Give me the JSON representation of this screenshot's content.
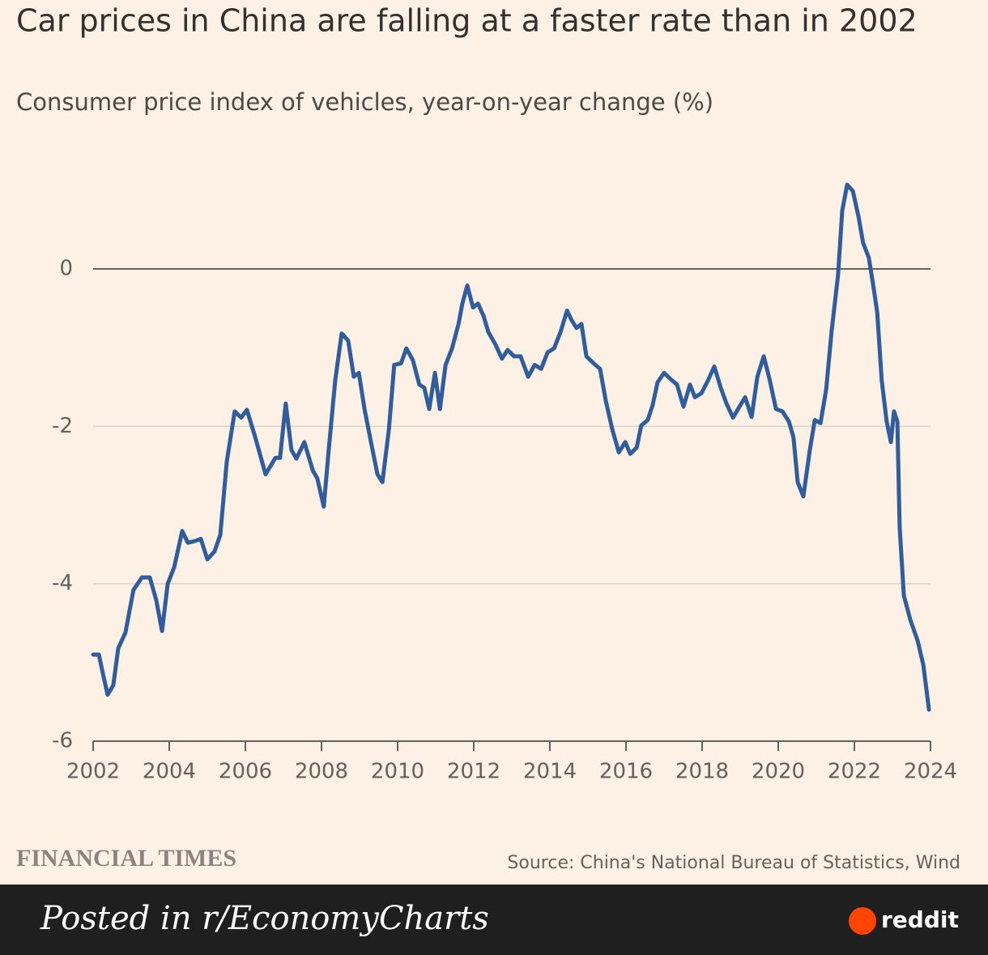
{
  "chart_data": {
    "type": "line",
    "title": "Car prices in China are falling at a faster rate than in 2002",
    "subtitle": "Consumer price index of vehicles, year-on-year change (%)",
    "brand": "FINANCIAL TIMES",
    "source": "Source: China's National Bureau of Statistics, Wind",
    "footer": "Posted in r/EconomyCharts",
    "footer_logo": "reddit",
    "xlim": [
      2002,
      2024
    ],
    "xticks": [
      2002,
      2004,
      2006,
      2008,
      2010,
      2012,
      2014,
      2016,
      2018,
      2020,
      2022,
      2024
    ],
    "ylim": [
      -6,
      1.3
    ],
    "yticks": [
      0,
      -2,
      -4,
      -6
    ],
    "grid": true,
    "x": [
      2002.0,
      2002.15,
      2002.25,
      2002.38,
      2002.53,
      2002.66,
      2002.85,
      2003.06,
      2003.28,
      2003.49,
      2003.66,
      2003.81,
      2003.96,
      2004.13,
      2004.34,
      2004.49,
      2004.66,
      2004.83,
      2005.0,
      2005.19,
      2005.34,
      2005.51,
      2005.72,
      2005.89,
      2006.04,
      2006.26,
      2006.53,
      2006.79,
      2006.91,
      2007.06,
      2007.21,
      2007.34,
      2007.55,
      2007.77,
      2007.89,
      2008.06,
      2008.19,
      2008.36,
      2008.53,
      2008.7,
      2008.85,
      2008.98,
      2009.13,
      2009.3,
      2009.47,
      2009.6,
      2009.77,
      2009.91,
      2010.09,
      2010.23,
      2010.4,
      2010.57,
      2010.7,
      2010.83,
      2010.98,
      2011.11,
      2011.26,
      2011.43,
      2011.6,
      2011.7,
      2011.83,
      2011.98,
      2012.11,
      2012.26,
      2012.38,
      2012.57,
      2012.74,
      2012.89,
      2013.06,
      2013.23,
      2013.43,
      2013.6,
      2013.77,
      2013.94,
      2014.11,
      2014.28,
      2014.45,
      2014.57,
      2014.7,
      2014.83,
      2014.96,
      2015.15,
      2015.32,
      2015.47,
      2015.64,
      2015.81,
      2015.98,
      2016.11,
      2016.28,
      2016.4,
      2016.57,
      2016.7,
      2016.83,
      2017.0,
      2017.17,
      2017.34,
      2017.51,
      2017.68,
      2017.81,
      2017.98,
      2018.15,
      2018.32,
      2018.49,
      2018.64,
      2018.81,
      2018.98,
      2019.13,
      2019.3,
      2019.45,
      2019.62,
      2019.77,
      2019.94,
      2020.11,
      2020.28,
      2020.4,
      2020.51,
      2020.66,
      2020.83,
      2020.96,
      2021.11,
      2021.26,
      2021.4,
      2021.57,
      2021.68,
      2021.81,
      2021.96,
      2022.11,
      2022.23,
      2022.38,
      2022.49,
      2022.6,
      2022.72,
      2022.85,
      2022.96,
      2023.04,
      2023.13,
      2023.19,
      2023.3,
      2023.47,
      2023.66,
      2023.81,
      2023.96
    ],
    "series": [
      {
        "color": "#2f5d9e",
        "values": [
          -4.9,
          -4.9,
          -5.13,
          -5.41,
          -5.29,
          -4.82,
          -4.62,
          -4.08,
          -3.92,
          -3.92,
          -4.21,
          -4.6,
          -4.0,
          -3.79,
          -3.33,
          -3.48,
          -3.46,
          -3.43,
          -3.69,
          -3.59,
          -3.38,
          -2.45,
          -1.81,
          -1.89,
          -1.79,
          -2.14,
          -2.61,
          -2.4,
          -2.4,
          -1.71,
          -2.3,
          -2.41,
          -2.2,
          -2.56,
          -2.66,
          -3.02,
          -2.3,
          -1.42,
          -0.82,
          -0.91,
          -1.37,
          -1.32,
          -1.78,
          -2.2,
          -2.61,
          -2.71,
          -2.04,
          -1.22,
          -1.2,
          -1.01,
          -1.16,
          -1.47,
          -1.51,
          -1.78,
          -1.32,
          -1.78,
          -1.22,
          -1.01,
          -0.7,
          -0.44,
          -0.21,
          -0.49,
          -0.44,
          -0.6,
          -0.8,
          -0.96,
          -1.14,
          -1.03,
          -1.11,
          -1.11,
          -1.37,
          -1.22,
          -1.27,
          -1.06,
          -1.01,
          -0.8,
          -0.53,
          -0.65,
          -0.75,
          -0.7,
          -1.11,
          -1.2,
          -1.27,
          -1.68,
          -2.04,
          -2.33,
          -2.2,
          -2.35,
          -2.27,
          -1.99,
          -1.92,
          -1.73,
          -1.44,
          -1.32,
          -1.4,
          -1.47,
          -1.75,
          -1.47,
          -1.63,
          -1.58,
          -1.42,
          -1.24,
          -1.51,
          -1.71,
          -1.89,
          -1.75,
          -1.63,
          -1.88,
          -1.37,
          -1.11,
          -1.4,
          -1.78,
          -1.81,
          -1.94,
          -2.14,
          -2.71,
          -2.89,
          -2.3,
          -1.92,
          -1.96,
          -1.53,
          -0.8,
          -0.08,
          0.74,
          1.07,
          0.99,
          0.66,
          0.33,
          0.14,
          -0.19,
          -0.55,
          -1.42,
          -1.94,
          -2.2,
          -1.81,
          -1.94,
          -3.28,
          -4.15,
          -4.46,
          -4.72,
          -5.03,
          -5.6
        ]
      }
    ]
  }
}
